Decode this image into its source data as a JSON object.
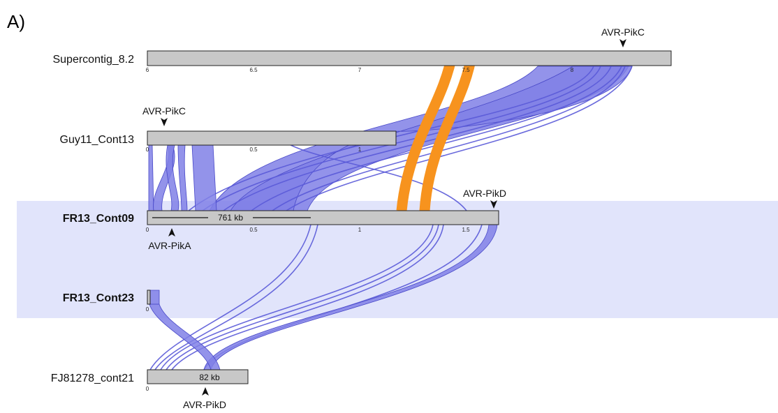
{
  "panel_label": "A)",
  "highlight_color": "#e1e4fb",
  "link_color": "#8080e6",
  "inversion_color": "#f7931e",
  "contigs": [
    {
      "id": "supercontig",
      "label": "Supercontig_8.2",
      "bold": false,
      "ticks": [
        "6",
        "6.5",
        "7",
        "7.5",
        "8"
      ]
    },
    {
      "id": "guy11",
      "label": "Guy11_Cont13",
      "bold": false,
      "ticks": [
        "0",
        "0.5",
        "1"
      ]
    },
    {
      "id": "fr13_cont09",
      "label": "FR13_Cont09",
      "bold": true,
      "ticks": [
        "0",
        "0.5",
        "1",
        "1.5"
      ]
    },
    {
      "id": "fr13_cont23",
      "label": "FR13_Cont23",
      "bold": true,
      "ticks": [
        "0"
      ]
    },
    {
      "id": "fj81278",
      "label": "FJ81278_cont21",
      "bold": false,
      "ticks": [
        "0"
      ]
    }
  ],
  "markers": [
    {
      "id": "supercontig_pikc",
      "label": "AVR-PikC"
    },
    {
      "id": "guy11_pikc",
      "label": "AVR-PikC"
    },
    {
      "id": "fr13_pikd",
      "label": "AVR-PikD"
    },
    {
      "id": "fr13_pika",
      "label": "AVR-PikA"
    },
    {
      "id": "fj_pikd",
      "label": "AVR-PikD"
    }
  ],
  "size_labels": {
    "fr13_cont09": "761 kb",
    "fj81278": "82 kb"
  }
}
